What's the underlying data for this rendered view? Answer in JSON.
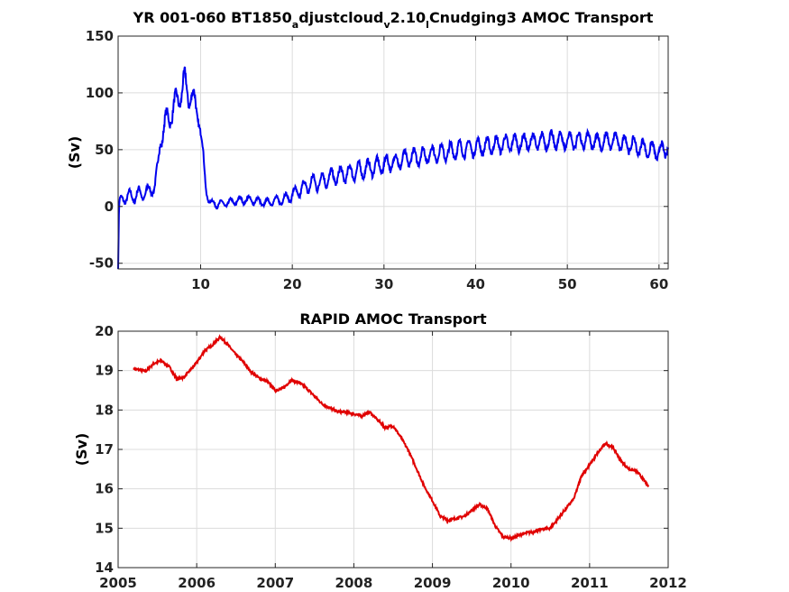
{
  "chart_data": [
    {
      "type": "line",
      "title_parts": [
        "YR 001-060 BT1850",
        "a",
        "djustcloud",
        "v",
        "2.10",
        "l",
        "Cnudging3 AMOC Transport"
      ],
      "xlabel": "",
      "ylabel": "(Sv)",
      "xlim": [
        1,
        61
      ],
      "ylim": [
        -55,
        150
      ],
      "xticks": [
        10,
        20,
        30,
        40,
        50,
        60
      ],
      "xtick_labels": [
        "10",
        "20",
        "30",
        "40",
        "50",
        "60"
      ],
      "yticks": [
        -50,
        0,
        50,
        100,
        150
      ],
      "ytick_labels": [
        "-50",
        "0",
        "50",
        "100",
        "150"
      ],
      "grid": true,
      "color": "#0000ee",
      "series": [
        {
          "x": [
            1.0,
            1.1,
            1.2,
            1.5,
            2.0,
            2.5,
            3.0,
            3.5,
            4.0,
            4.5,
            5.0,
            5.3,
            5.6,
            6.0,
            6.5,
            7.0,
            7.5,
            8.0,
            8.3,
            8.6,
            9.0,
            9.4,
            9.8,
            10.2,
            10.6,
            11.0,
            12.0,
            13.0,
            14.0,
            15.0,
            16.0,
            17.0,
            18.0,
            19.0,
            20.0,
            21.0,
            22.0,
            23.0,
            24.0,
            25.0,
            26.0,
            27.0,
            28.0,
            29.0,
            30.0,
            31.0,
            32.0,
            33.0,
            34.0,
            35.0,
            36.0,
            37.0,
            38.0,
            39.0,
            40.0,
            41.0,
            42.0,
            43.0,
            44.0,
            45.0,
            46.0,
            47.0,
            48.0,
            49.0,
            50.0,
            51.0,
            52.0,
            53.0,
            54.0,
            55.0,
            56.0,
            57.0,
            58.0,
            59.0,
            60.0,
            60.5,
            61.0
          ],
          "y": [
            -55,
            0,
            5,
            7,
            8,
            9,
            10,
            11,
            12,
            14,
            18,
            30,
            60,
            70,
            78,
            85,
            95,
            103,
            108,
            100,
            96,
            90,
            80,
            50,
            15,
            3,
            2,
            3,
            5,
            6,
            5,
            3,
            5,
            6,
            10,
            15,
            20,
            22,
            25,
            27,
            29,
            31,
            33,
            35,
            37,
            39,
            41,
            43,
            44,
            46,
            47,
            48,
            50,
            51,
            52,
            53,
            54,
            55,
            56,
            56,
            57,
            57,
            58,
            58,
            58,
            58,
            58,
            57,
            57,
            58,
            56,
            54,
            52,
            50,
            48,
            50,
            52
          ],
          "osc_amp": [
            0,
            2,
            3,
            4,
            5,
            6,
            6,
            6,
            5,
            5,
            5,
            8,
            10,
            10,
            10,
            10,
            10,
            12,
            12,
            10,
            10,
            10,
            8,
            6,
            4,
            3,
            3,
            3,
            3,
            3,
            3,
            3,
            3,
            4,
            5,
            6,
            7,
            7,
            7,
            7,
            7,
            7,
            7,
            7,
            7,
            7,
            7,
            7,
            7,
            7,
            7,
            7,
            7,
            7,
            7,
            7,
            7,
            7,
            7,
            7,
            7,
            7,
            7,
            7,
            7,
            7,
            7,
            7,
            7,
            7,
            7,
            7,
            7,
            7,
            7,
            7,
            7
          ]
        }
      ]
    },
    {
      "type": "line",
      "title": "RAPID AMOC Transport",
      "xlabel": "",
      "ylabel": "(Sv)",
      "xlim": [
        2005,
        2012
      ],
      "ylim": [
        14,
        20
      ],
      "xticks": [
        2005,
        2006,
        2007,
        2008,
        2009,
        2010,
        2011,
        2012
      ],
      "xtick_labels": [
        "2005",
        "2006",
        "2007",
        "2008",
        "2009",
        "2010",
        "2011",
        "2012"
      ],
      "yticks": [
        14,
        15,
        16,
        17,
        18,
        19,
        20
      ],
      "ytick_labels": [
        "14",
        "15",
        "16",
        "17",
        "18",
        "19",
        "20"
      ],
      "grid": true,
      "color": "#e00000",
      "series": [
        {
          "x": [
            2005.2,
            2005.35,
            2005.45,
            2005.55,
            2005.65,
            2005.75,
            2005.85,
            2006.0,
            2006.1,
            2006.2,
            2006.3,
            2006.4,
            2006.5,
            2006.6,
            2006.7,
            2006.8,
            2006.9,
            2007.0,
            2007.1,
            2007.2,
            2007.3,
            2007.4,
            2007.5,
            2007.6,
            2007.7,
            2007.8,
            2007.9,
            2008.0,
            2008.1,
            2008.2,
            2008.3,
            2008.4,
            2008.5,
            2008.6,
            2008.7,
            2008.8,
            2008.9,
            2009.0,
            2009.1,
            2009.2,
            2009.3,
            2009.4,
            2009.5,
            2009.6,
            2009.7,
            2009.8,
            2009.9,
            2010.0,
            2010.1,
            2010.2,
            2010.3,
            2010.4,
            2010.5,
            2010.6,
            2010.7,
            2010.8,
            2010.9,
            2011.0,
            2011.1,
            2011.2,
            2011.3,
            2011.4,
            2011.5,
            2011.6,
            2011.7,
            2011.75
          ],
          "y": [
            19.05,
            18.98,
            19.18,
            19.25,
            19.1,
            18.77,
            18.85,
            19.2,
            19.5,
            19.65,
            19.85,
            19.65,
            19.4,
            19.2,
            18.95,
            18.8,
            18.72,
            18.5,
            18.55,
            18.75,
            18.7,
            18.55,
            18.35,
            18.15,
            18.05,
            17.95,
            17.95,
            17.9,
            17.85,
            17.95,
            17.75,
            17.55,
            17.6,
            17.3,
            16.95,
            16.5,
            16.05,
            15.7,
            15.3,
            15.2,
            15.25,
            15.3,
            15.45,
            15.6,
            15.5,
            15.05,
            14.78,
            14.75,
            14.82,
            14.88,
            14.92,
            14.98,
            15.0,
            15.25,
            15.5,
            15.75,
            16.35,
            16.6,
            16.9,
            17.15,
            17.05,
            16.7,
            16.5,
            16.45,
            16.2,
            16.05
          ],
          "osc_amp": 0.03
        }
      ]
    }
  ]
}
